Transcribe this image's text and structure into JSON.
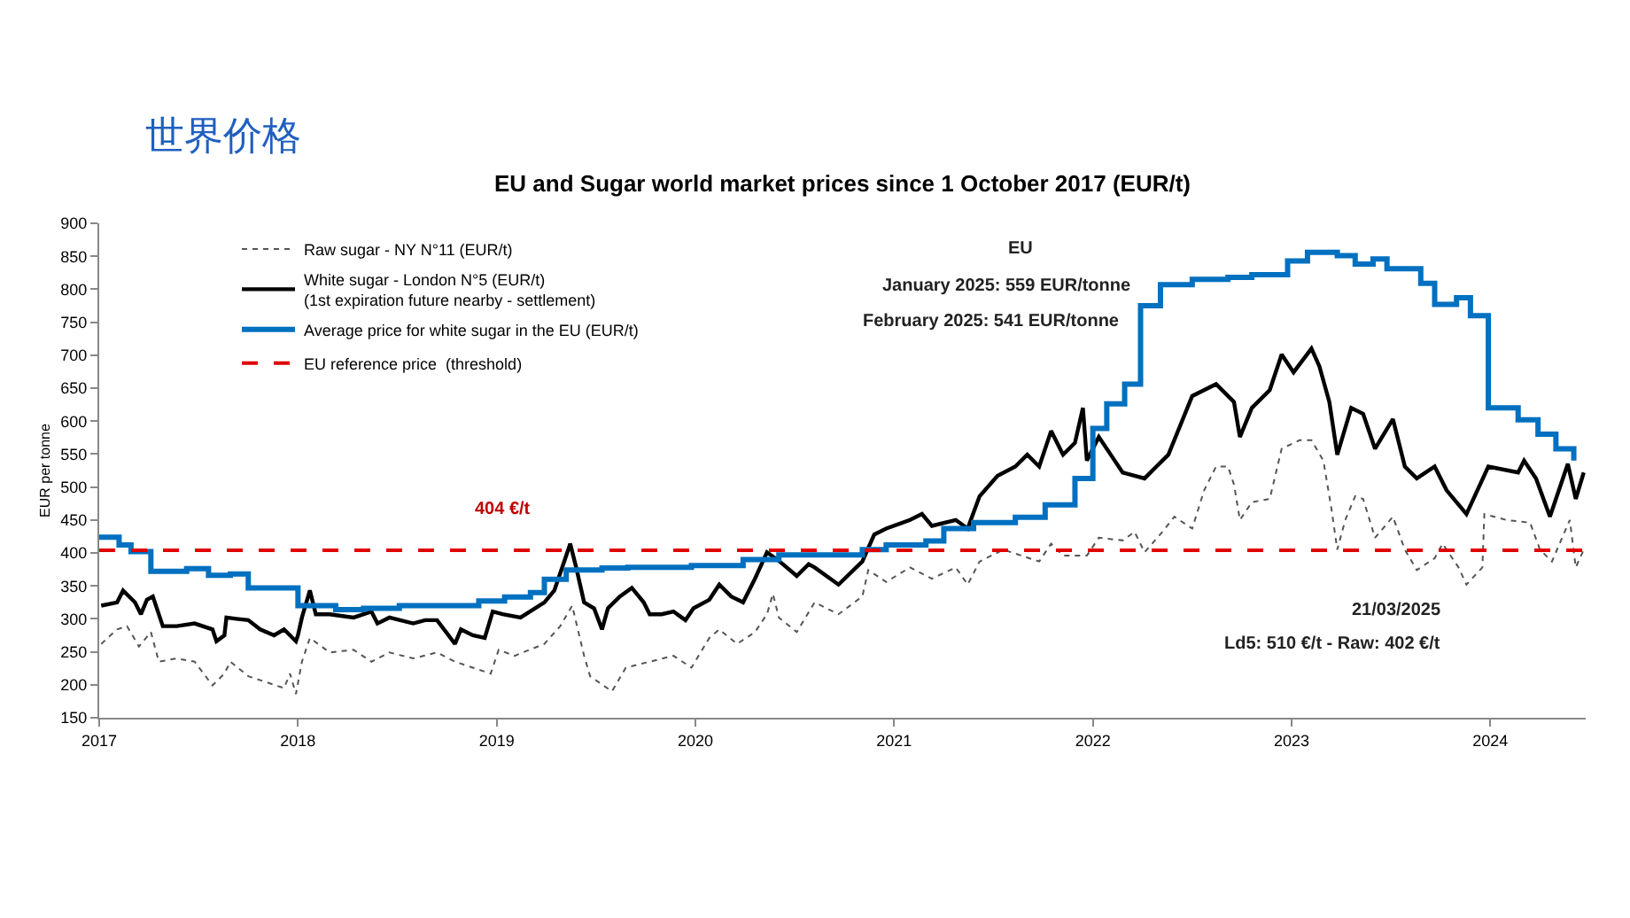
{
  "chart_data": {
    "type": "line",
    "title": "世界价格",
    "subtitle": "EU and Sugar world market prices since 1 October 2017 (EUR/t)",
    "ylabel": "EUR per tonne",
    "xlim": [
      2017,
      2024.48
    ],
    "xticks": [
      2017,
      2018,
      2019,
      2020,
      2021,
      2022,
      2023,
      2024
    ],
    "ylim": [
      150,
      900
    ],
    "yticks": [
      150,
      200,
      250,
      300,
      350,
      400,
      450,
      500,
      550,
      600,
      650,
      700,
      750,
      800,
      850,
      900
    ],
    "legend": "top left",
    "marker": "none",
    "series": [
      {
        "name": "Raw sugar - NY N°11 (EUR/t)",
        "color": "#555555",
        "line_style": "dotted",
        "x": [
          2017.01,
          2017.09,
          2017.14,
          2017.2,
          2017.26,
          2017.3,
          2017.39,
          2017.48,
          2017.57,
          2017.63,
          2017.66,
          2017.75,
          2017.84,
          2017.93,
          2017.96,
          2017.99,
          2018.02,
          2018.06,
          2018.16,
          2018.28,
          2018.37,
          2018.46,
          2018.58,
          2018.7,
          2018.79,
          2018.88,
          2018.97,
          2019.01,
          2019.09,
          2019.24,
          2019.32,
          2019.38,
          2019.44,
          2019.47,
          2019.58,
          2019.65,
          2019.77,
          2019.89,
          2019.98,
          2020.07,
          2020.12,
          2020.21,
          2020.3,
          2020.36,
          2020.39,
          2020.42,
          2020.51,
          2020.6,
          2020.72,
          2020.84,
          2020.87,
          2020.96,
          2021.08,
          2021.19,
          2021.31,
          2021.37,
          2021.43,
          2021.55,
          2021.64,
          2021.73,
          2021.79,
          2021.85,
          2021.97,
          2022.03,
          2022.15,
          2022.21,
          2022.26,
          2022.35,
          2022.41,
          2022.5,
          2022.56,
          2022.62,
          2022.68,
          2022.71,
          2022.74,
          2022.8,
          2022.89,
          2022.95,
          2023.04,
          2023.1,
          2023.16,
          2023.2,
          2023.23,
          2023.27,
          2023.32,
          2023.36,
          2023.42,
          2023.51,
          2023.57,
          2023.63,
          2023.72,
          2023.76,
          2023.84,
          2023.88,
          2023.96,
          2023.97,
          2024.08,
          2024.2,
          2024.25,
          2024.31,
          2024.4,
          2024.43,
          2024.47
        ],
        "values": [
          262,
          284,
          289,
          258,
          280,
          235,
          240,
          235,
          199,
          217,
          235,
          213,
          204,
          195,
          217,
          186,
          235,
          271,
          249,
          253,
          235,
          249,
          240,
          249,
          235,
          226,
          217,
          253,
          244,
          262,
          289,
          320,
          244,
          213,
          190,
          226,
          235,
          244,
          226,
          271,
          284,
          262,
          280,
          307,
          338,
          302,
          280,
          325,
          307,
          334,
          374,
          356,
          378,
          361,
          378,
          352,
          387,
          405,
          396,
          387,
          414,
          396,
          396,
          423,
          419,
          432,
          401,
          432,
          455,
          437,
          495,
          531,
          531,
          504,
          450,
          477,
          482,
          558,
          571,
          571,
          540,
          468,
          405,
          450,
          486,
          482,
          423,
          455,
          405,
          374,
          392,
          414,
          378,
          352,
          378,
          459,
          450,
          446,
          405,
          387,
          450,
          378,
          405
        ]
      },
      {
        "name": "White sugar - London N°5 (EUR/t)\n(1st expiration future nearby - settlement)",
        "color": "#000000",
        "line_style": "solid",
        "x": [
          2017.01,
          2017.09,
          2017.12,
          2017.18,
          2017.21,
          2017.24,
          2017.27,
          2017.32,
          2017.39,
          2017.48,
          2017.57,
          2017.59,
          2017.63,
          2017.64,
          2017.69,
          2017.75,
          2017.81,
          2017.88,
          2017.93,
          2017.99,
          2018.0,
          2018.02,
          2018.06,
          2018.09,
          2018.16,
          2018.28,
          2018.37,
          2018.4,
          2018.46,
          2018.58,
          2018.64,
          2018.7,
          2018.79,
          2018.82,
          2018.88,
          2018.94,
          2018.98,
          2019.03,
          2019.12,
          2019.24,
          2019.29,
          2019.35,
          2019.37,
          2019.4,
          2019.44,
          2019.49,
          2019.53,
          2019.56,
          2019.62,
          2019.68,
          2019.74,
          2019.77,
          2019.83,
          2019.89,
          2019.95,
          2019.99,
          2020.07,
          2020.12,
          2020.18,
          2020.24,
          2020.3,
          2020.36,
          2020.42,
          2020.51,
          2020.57,
          2020.6,
          2020.72,
          2020.84,
          2020.9,
          2020.96,
          2021.08,
          2021.14,
          2021.19,
          2021.31,
          2021.37,
          2021.43,
          2021.52,
          2021.61,
          2021.67,
          2021.73,
          2021.79,
          2021.85,
          2021.91,
          2021.95,
          2021.97,
          2022.03,
          2022.09,
          2022.15,
          2022.26,
          2022.32,
          2022.38,
          2022.5,
          2022.62,
          2022.71,
          2022.74,
          2022.8,
          2022.89,
          2022.95,
          2023.01,
          2023.1,
          2023.14,
          2023.19,
          2023.23,
          2023.3,
          2023.36,
          2023.42,
          2023.51,
          2023.57,
          2023.63,
          2023.72,
          2023.78,
          2023.88,
          2023.99,
          2024.14,
          2024.17,
          2024.23,
          2024.3,
          2024.39,
          2024.43,
          2024.47
        ],
        "values": [
          320,
          325,
          343,
          325,
          307,
          329,
          334,
          289,
          289,
          293,
          284,
          266,
          275,
          302,
          300,
          298,
          284,
          275,
          284,
          266,
          275,
          302,
          343,
          307,
          307,
          302,
          311,
          293,
          302,
          293,
          298,
          298,
          262,
          284,
          275,
          271,
          311,
          307,
          302,
          325,
          343,
          396,
          414,
          378,
          325,
          316,
          284,
          316,
          334,
          347,
          325,
          307,
          307,
          311,
          298,
          316,
          329,
          352,
          334,
          325,
          361,
          401,
          388,
          365,
          383,
          378,
          352,
          387,
          428,
          437,
          450,
          459,
          441,
          450,
          437,
          486,
          517,
          531,
          549,
          531,
          585,
          549,
          567,
          620,
          540,
          576,
          549,
          522,
          513,
          531,
          549,
          638,
          656,
          629,
          576,
          620,
          647,
          701,
          674,
          710,
          683,
          629,
          549,
          620,
          611,
          558,
          603,
          531,
          513,
          531,
          495,
          459,
          531,
          522,
          540,
          513,
          455,
          535,
          482,
          522
        ]
      },
      {
        "name": "Average price for white sugar in the EU (EUR/t)",
        "type": "step",
        "color": "#0070c0",
        "line_style": "solid",
        "x": [
          2017.0,
          2017.1,
          2017.16,
          2017.26,
          2017.44,
          2017.55,
          2017.66,
          2017.75,
          2018.0,
          2018.19,
          2018.33,
          2018.51,
          2018.91,
          2019.04,
          2019.17,
          2019.24,
          2019.35,
          2019.53,
          2019.66,
          2019.98,
          2020.24,
          2020.42,
          2020.84,
          2020.96,
          2021.16,
          2021.25,
          2021.4,
          2021.61,
          2021.76,
          2021.91,
          2022.0,
          2022.07,
          2022.16,
          2022.24,
          2022.34,
          2022.5,
          2022.68,
          2022.8,
          2022.98,
          2023.08,
          2023.23,
          2023.32,
          2023.41,
          2023.48,
          2023.65,
          2023.72,
          2023.83,
          2023.9,
          2023.99,
          2024.14,
          2024.24,
          2024.33,
          2024.42
        ],
        "values": [
          424,
          412,
          402,
          372,
          376,
          366,
          368,
          347,
          320,
          314,
          316,
          320,
          327,
          333,
          340,
          360,
          374,
          377,
          378,
          381,
          390,
          397,
          405,
          412,
          418,
          437,
          446,
          454,
          473,
          513,
          589,
          626,
          656,
          775,
          807,
          815,
          818,
          822,
          843,
          856,
          851,
          838,
          846,
          831,
          809,
          777,
          787,
          760,
          620,
          602,
          580,
          558,
          540
        ]
      },
      {
        "name": "EU reference price  (threshold)",
        "color": "#e00000",
        "line_style": "dashed",
        "x": [
          2017.0,
          2024.47
        ],
        "values": [
          404,
          404
        ]
      }
    ],
    "annotations": [
      "404 €/t",
      "EU",
      "January 2025: 559 EUR/tonne",
      "February 2025: 541 EUR/tonne",
      "21/03/2025",
      "Ld5: 510 €/t - Raw: 402 €/t"
    ]
  }
}
